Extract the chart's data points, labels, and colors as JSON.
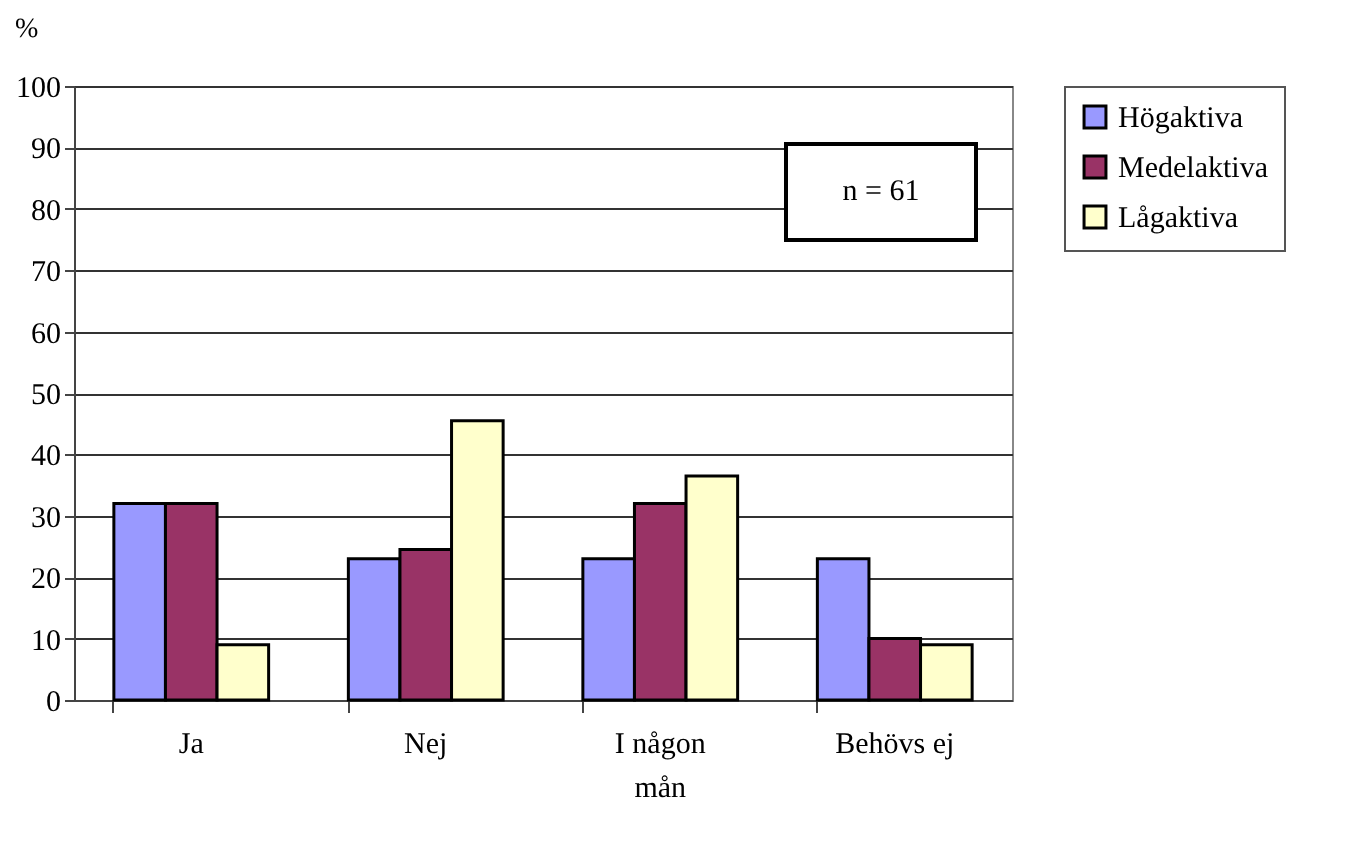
{
  "chart_data": {
    "type": "bar",
    "ylabel": "%",
    "categories": [
      "Ja",
      "Nej",
      "I någon mån",
      "Behövs ej"
    ],
    "series": [
      {
        "name": "Högaktiva",
        "color": "#9999ff",
        "values": [
          32,
          23,
          23,
          23
        ]
      },
      {
        "name": "Medelaktiva",
        "color": "#993366",
        "values": [
          32,
          24.5,
          32,
          10
        ]
      },
      {
        "name": "Lågaktiva",
        "color": "#ffffcc",
        "values": [
          9,
          45.5,
          36.5,
          9
        ]
      }
    ],
    "ylim": [
      0,
      100
    ],
    "yticks": [
      0,
      10,
      20,
      30,
      40,
      50,
      60,
      70,
      80,
      90,
      100
    ],
    "grid": "y",
    "legend": "right",
    "annotations": [
      "n = 61"
    ]
  }
}
